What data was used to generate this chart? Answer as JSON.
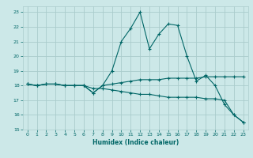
{
  "xlabel": "Humidex (Indice chaleur)",
  "bg_color": "#cce8e8",
  "grid_color": "#aacccc",
  "line_color": "#006666",
  "xlim": [
    -0.5,
    23.5
  ],
  "ylim": [
    15,
    23.4
  ],
  "yticks": [
    15,
    16,
    17,
    18,
    19,
    20,
    21,
    22,
    23
  ],
  "xticks": [
    0,
    1,
    2,
    3,
    4,
    5,
    6,
    7,
    8,
    9,
    10,
    11,
    12,
    13,
    14,
    15,
    16,
    17,
    18,
    19,
    20,
    21,
    22,
    23
  ],
  "series1_x": [
    0,
    1,
    2,
    3,
    4,
    5,
    6,
    7,
    8,
    9,
    10,
    11,
    12,
    13,
    14,
    15,
    16,
    17,
    18,
    19,
    20,
    21,
    22,
    23
  ],
  "series1_y": [
    18.1,
    18.0,
    18.1,
    18.1,
    18.0,
    18.0,
    18.0,
    17.5,
    18.0,
    19.0,
    21.0,
    21.9,
    23.0,
    20.5,
    21.5,
    22.2,
    22.1,
    20.0,
    18.3,
    18.7,
    18.0,
    16.7,
    16.0,
    15.5
  ],
  "series2_x": [
    0,
    1,
    2,
    3,
    4,
    5,
    6,
    7,
    8,
    9,
    10,
    11,
    12,
    13,
    14,
    15,
    16,
    17,
    18,
    19,
    20,
    21,
    22,
    23
  ],
  "series2_y": [
    18.1,
    18.0,
    18.1,
    18.1,
    18.0,
    18.0,
    18.0,
    17.8,
    17.8,
    17.7,
    17.6,
    17.5,
    17.4,
    17.4,
    17.3,
    17.2,
    17.2,
    17.2,
    17.2,
    17.1,
    17.1,
    17.0,
    16.0,
    15.5
  ],
  "series3_x": [
    0,
    1,
    2,
    3,
    4,
    5,
    6,
    7,
    8,
    9,
    10,
    11,
    12,
    13,
    14,
    15,
    16,
    17,
    18,
    19,
    20,
    21,
    22,
    23
  ],
  "series3_y": [
    18.1,
    18.0,
    18.1,
    18.1,
    18.0,
    18.0,
    18.0,
    17.5,
    18.0,
    18.1,
    18.2,
    18.3,
    18.4,
    18.4,
    18.4,
    18.5,
    18.5,
    18.5,
    18.5,
    18.6,
    18.6,
    18.6,
    18.6,
    18.6
  ]
}
